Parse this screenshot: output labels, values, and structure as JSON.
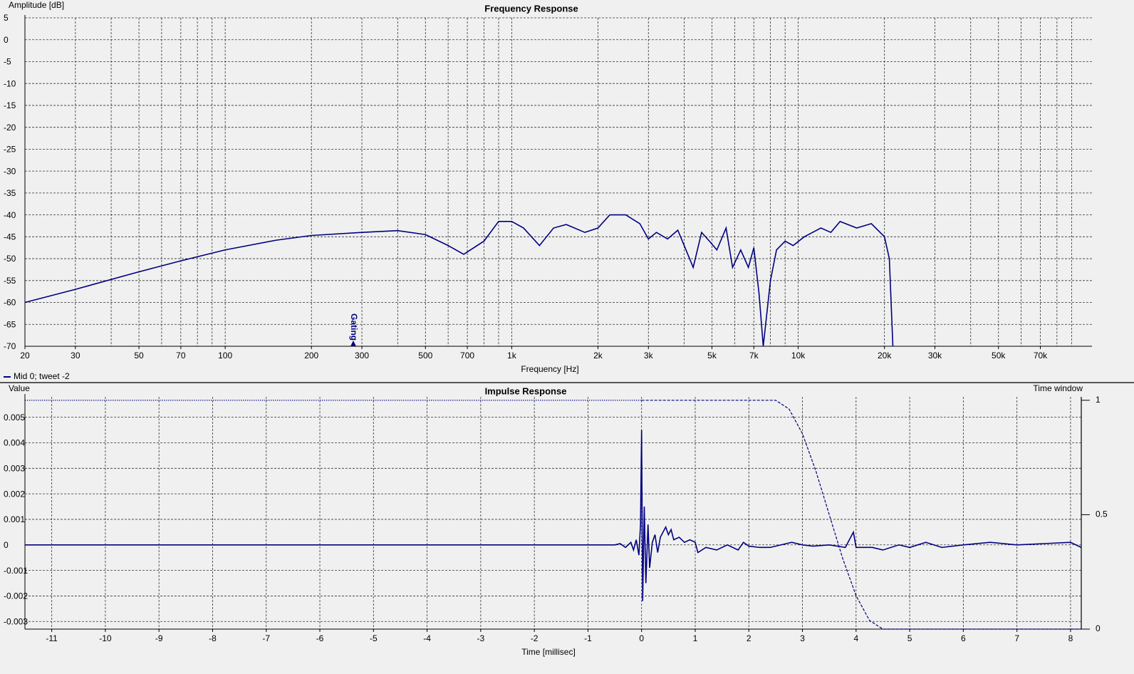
{
  "chart_data": [
    {
      "type": "line",
      "title": "Frequency Response",
      "ylabel": "Amplitude [dB]",
      "xlabel": "Frequency [Hz]",
      "xscale": "log",
      "xlim": [
        20,
        106000
      ],
      "ylim": [
        -70,
        5
      ],
      "xticks": [
        20,
        30,
        50,
        70,
        100,
        200,
        300,
        500,
        700,
        {
          "value": 1000,
          "label": "1k"
        },
        {
          "value": 2000,
          "label": "2k"
        },
        {
          "value": 3000,
          "label": "3k"
        },
        {
          "value": 5000,
          "label": "5k"
        },
        {
          "value": 7000,
          "label": "7k"
        },
        {
          "value": 10000,
          "label": "10k"
        },
        {
          "value": 20000,
          "label": "20k"
        },
        {
          "value": 30000,
          "label": "30k"
        },
        {
          "value": 50000,
          "label": "50k"
        },
        {
          "value": 70000,
          "label": "70k"
        }
      ],
      "xgrid": [
        20,
        30,
        40,
        50,
        60,
        70,
        80,
        90,
        100,
        200,
        300,
        400,
        500,
        600,
        700,
        800,
        900,
        1000,
        2000,
        3000,
        4000,
        5000,
        6000,
        7000,
        8000,
        9000,
        10000,
        20000,
        30000,
        40000,
        50000,
        60000,
        70000,
        80000,
        90000
      ],
      "yticks": [
        5,
        0,
        -5,
        -10,
        -15,
        -20,
        -25,
        -30,
        -35,
        -40,
        -45,
        -50,
        -55,
        -60,
        -65,
        -70
      ],
      "grid": true,
      "annotations": [
        {
          "text": "Gating",
          "x": 280
        }
      ],
      "series": [
        {
          "name": "Mid 0; tweet -2",
          "color": "#000080",
          "x": [
            20,
            30,
            50,
            70,
            100,
            150,
            200,
            300,
            400,
            500,
            600,
            680,
            800,
            900,
            1000,
            1100,
            1250,
            1400,
            1550,
            1800,
            2000,
            2200,
            2500,
            2800,
            3000,
            3200,
            3500,
            3800,
            4000,
            4300,
            4600,
            4900,
            5200,
            5600,
            5900,
            6300,
            6700,
            7000,
            7300,
            7550,
            8000,
            8400,
            9000,
            9600,
            10500,
            12000,
            13000,
            14000,
            16000,
            18000,
            20000,
            20800,
            21400
          ],
          "values": [
            -60,
            -57,
            -53,
            -50.5,
            -48,
            -45.8,
            -44.7,
            -44,
            -43.6,
            -44.5,
            -47,
            -49,
            -46,
            -41.5,
            -41.5,
            -43,
            -47,
            -43,
            -42.2,
            -44,
            -43,
            -40,
            -40,
            -42,
            -45.5,
            -44,
            -45.5,
            -43.5,
            -47,
            -52,
            -44,
            -46,
            -48,
            -43,
            -52,
            -48,
            -52,
            -47.5,
            -58,
            -70,
            -55,
            -48,
            -46,
            -47,
            -45,
            -43,
            -44,
            -41.5,
            -43,
            -42,
            -45,
            -50,
            -70
          ]
        }
      ]
    },
    {
      "type": "line",
      "title": "Impulse Response",
      "ylabel": "Value",
      "y2label": "Time window",
      "xlabel": "Time [millisec]",
      "xlim": [
        -11.5,
        8.2
      ],
      "ylim": [
        -0.0033,
        0.0058
      ],
      "y2lim": [
        0,
        1.015
      ],
      "xticks": [
        -11,
        -10,
        -9,
        -8,
        -7,
        -6,
        -5,
        -4,
        -3,
        -2,
        -1,
        0,
        1,
        2,
        3,
        4,
        5,
        6,
        7,
        8
      ],
      "yticks": [
        0.005,
        0.004,
        0.003,
        0.002,
        0.001,
        0,
        -0.001,
        -0.002,
        -0.003
      ],
      "y2ticks": [
        1,
        0.5,
        0
      ],
      "grid": true,
      "series": [
        {
          "color": "#000080",
          "x": [
            -11.5,
            -0.5,
            -0.4,
            -0.3,
            -0.2,
            -0.15,
            -0.1,
            -0.05,
            -0.02,
            0,
            0.02,
            0.05,
            0.08,
            0.12,
            0.15,
            0.2,
            0.25,
            0.3,
            0.35,
            0.4,
            0.45,
            0.5,
            0.55,
            0.6,
            0.7,
            0.8,
            0.9,
            1.0,
            1.05,
            1.2,
            1.4,
            1.6,
            1.8,
            1.9,
            2.0,
            2.2,
            2.4,
            2.6,
            2.8,
            3.0,
            3.2,
            3.5,
            3.8,
            3.95,
            4.0,
            4.3,
            4.5,
            4.8,
            5.0,
            5.3,
            5.6,
            6.0,
            6.5,
            7.0,
            7.5,
            8.0,
            8.2
          ],
          "values": [
            0,
            0,
            5e-05,
            -0.0001,
            0.0001,
            -0.0002,
            0.0002,
            -0.0004,
            0.0008,
            0.0045,
            -0.0022,
            0.0015,
            -0.0015,
            0.0008,
            -0.0009,
            0.0001,
            0.0004,
            -0.0003,
            0.0003,
            0.0005,
            0.0007,
            0.0004,
            0.0006,
            0.0002,
            0.0003,
            0.0001,
            0.0002,
            0.0001,
            -0.0003,
            -0.0001,
            -0.0002,
            0,
            -0.0002,
            0.0001,
            -5e-05,
            -0.0001,
            -0.0001,
            0,
            0.0001,
            0,
            -5e-05,
            0,
            -0.0001,
            0.0005,
            -0.0001,
            -0.0001,
            -0.0002,
            0,
            -0.0001,
            0.0001,
            -0.0001,
            0,
            0.0001,
            0,
            5e-05,
            0.0001,
            -0.0001
          ]
        },
        {
          "color": "#000080",
          "axis": "y2",
          "dash": "dotted",
          "x": [
            -11.5,
            0
          ],
          "values": [
            1,
            1
          ]
        },
        {
          "color": "#000080",
          "axis": "y2",
          "dash": "dashed",
          "x": [
            0,
            2.5,
            2.75,
            3,
            3.25,
            3.5,
            3.75,
            4,
            4.25,
            4.5,
            8.2
          ],
          "values": [
            1,
            1,
            0.962,
            0.854,
            0.691,
            0.5,
            0.309,
            0.146,
            0.038,
            0,
            0
          ]
        }
      ]
    }
  ]
}
